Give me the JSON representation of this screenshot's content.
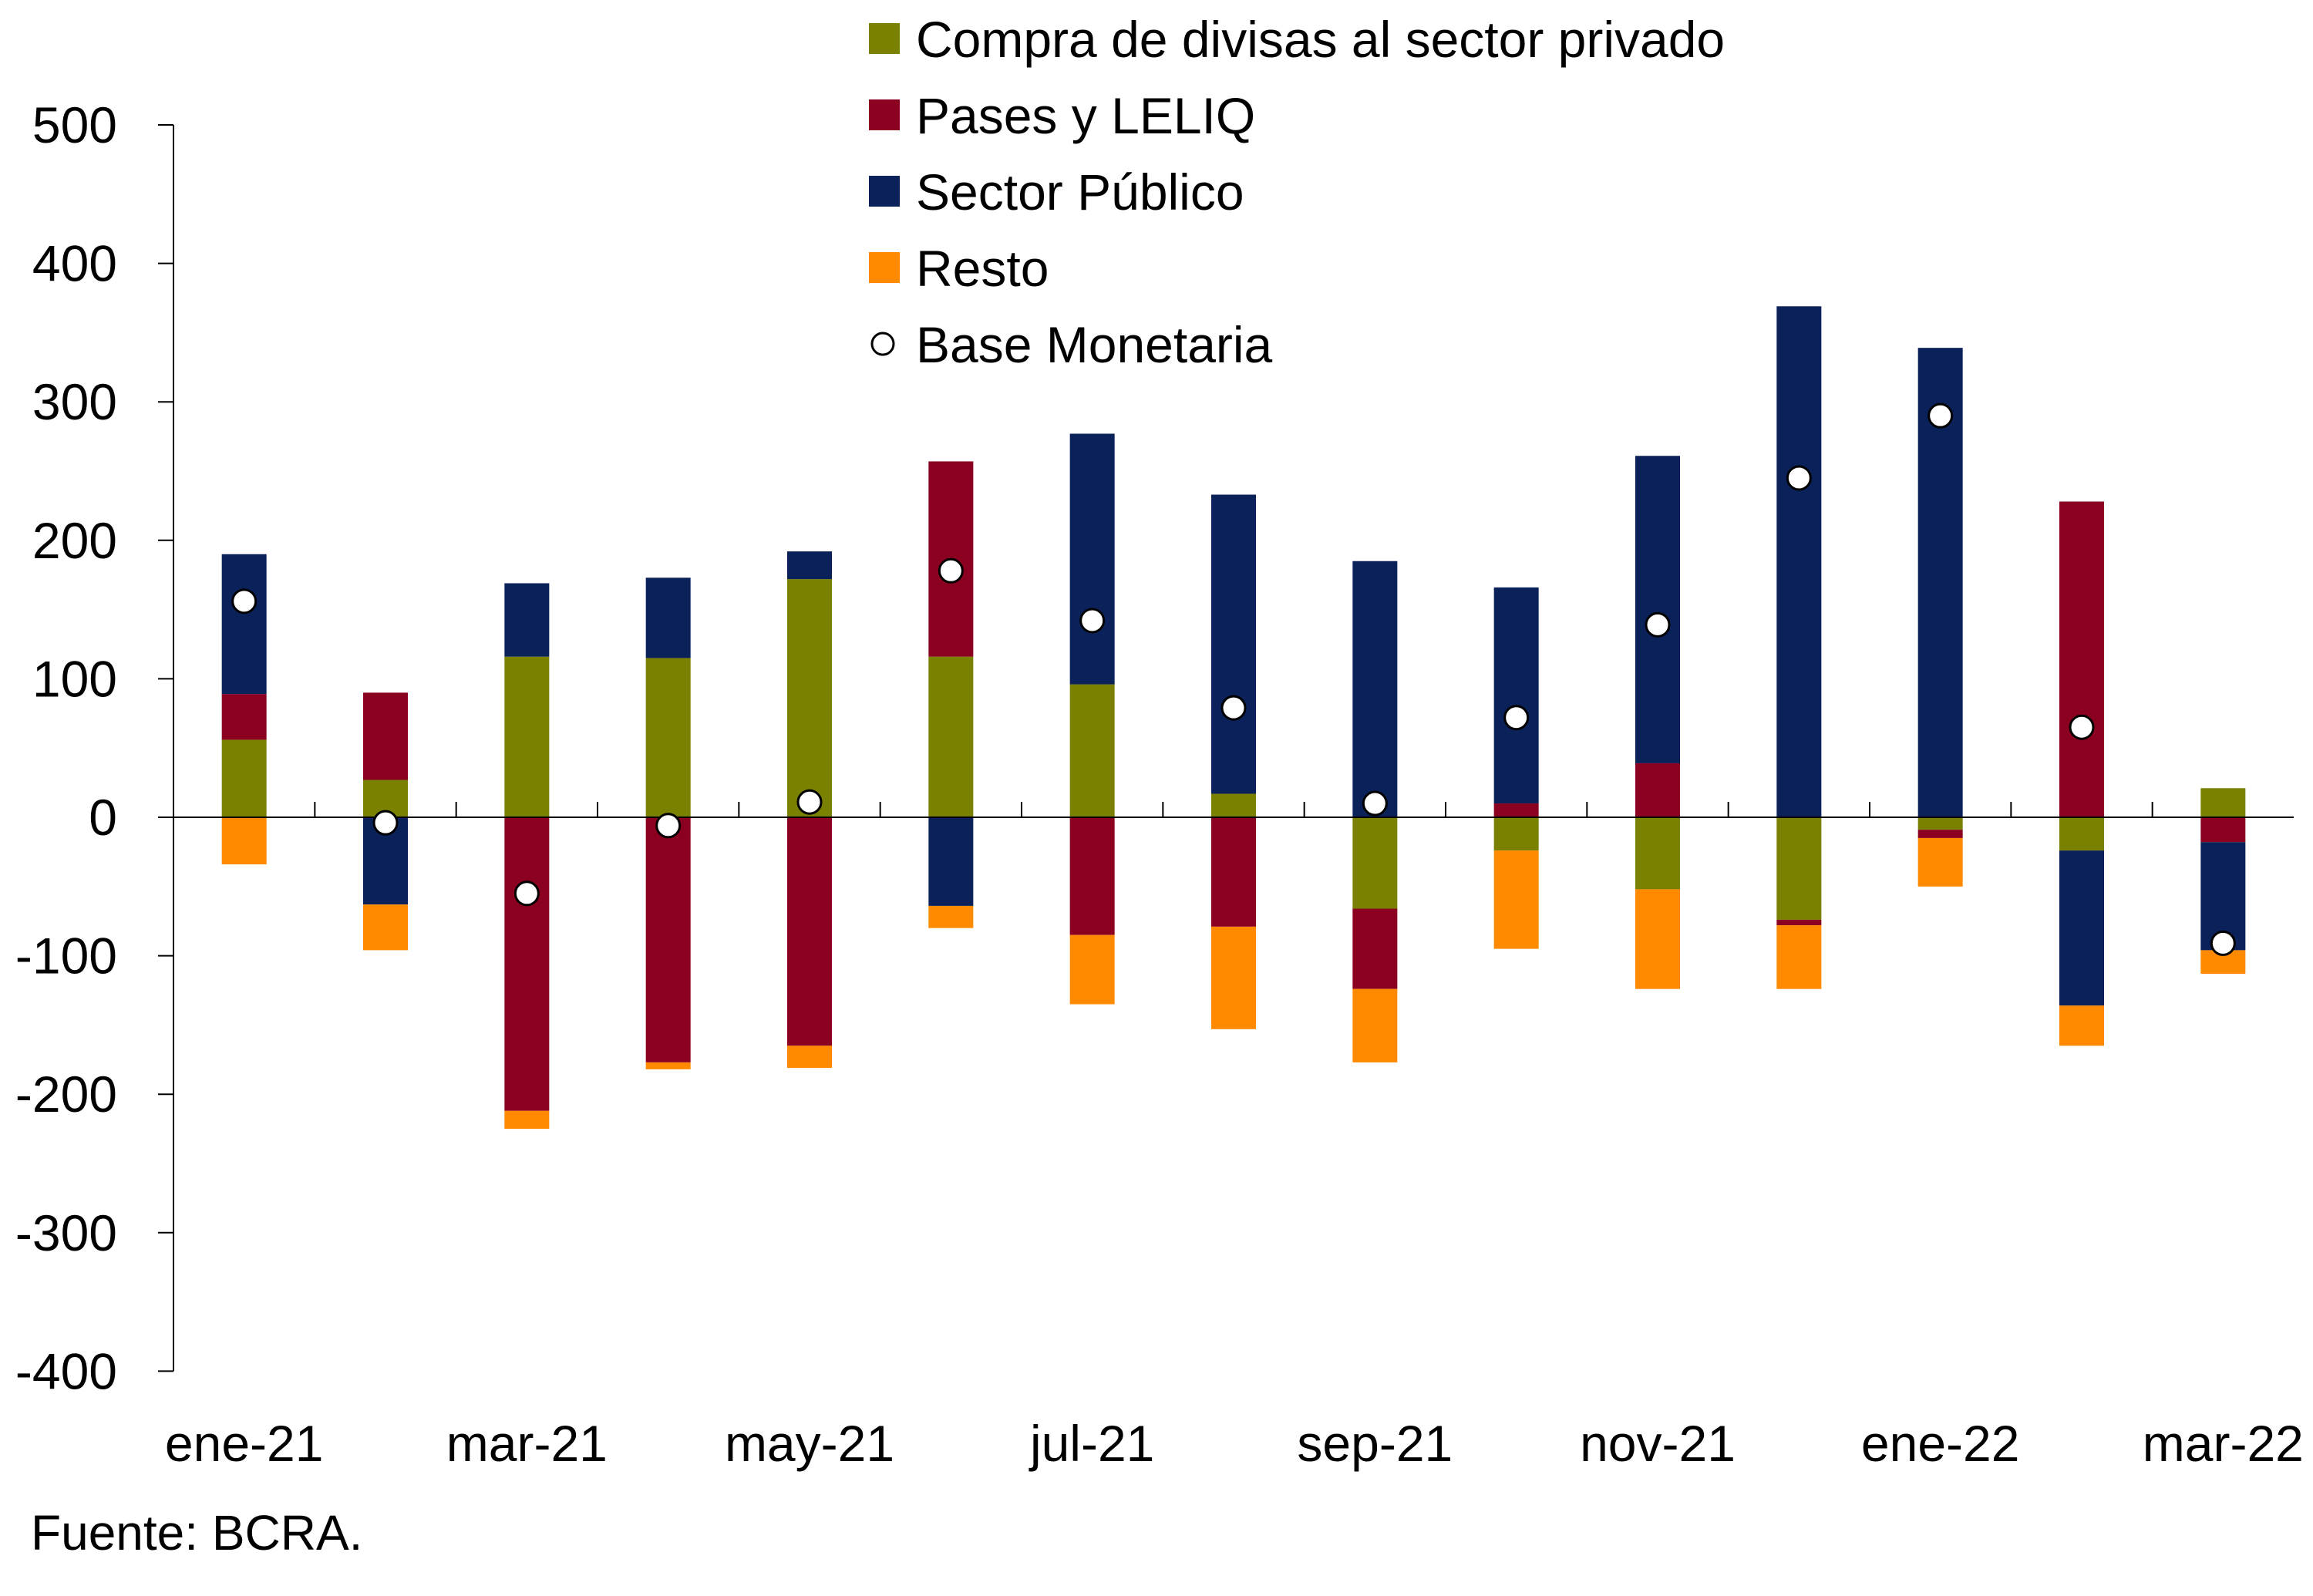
{
  "chart_data": {
    "type": "bar",
    "stacked": true,
    "x_tick_labels": [
      "ene-21",
      "mar-21",
      "may-21",
      "jul-21",
      "sep-21",
      "nov-21",
      "ene-22",
      "mar-22"
    ],
    "ylim": [
      -400,
      500
    ],
    "yticks": [
      500,
      400,
      300,
      200,
      100,
      0,
      -100,
      -200,
      -300,
      -400
    ],
    "grid": false,
    "legend_placement": "top",
    "series": [
      {
        "name": "Compra de divisas al sector privado",
        "color": "#7A8000",
        "values": [
          56,
          27,
          116,
          115,
          172,
          116,
          96,
          17,
          -66,
          -24,
          -52,
          -74,
          -9,
          -24,
          21
        ]
      },
      {
        "name": "Pases y LELIQ",
        "color": "#8B0021",
        "values": [
          33,
          63,
          -212,
          -177,
          -165,
          141,
          -85,
          -79,
          -58,
          10,
          39,
          -4,
          -6,
          228,
          -18
        ]
      },
      {
        "name": "Sector Público",
        "color": "#0A215A",
        "values": [
          101,
          -63,
          53,
          58,
          20,
          -64,
          181,
          216,
          185,
          156,
          222,
          369,
          339,
          -112,
          -78
        ]
      },
      {
        "name": "Resto",
        "color": "#FF8A00",
        "values": [
          -34,
          -33,
          -13,
          -5,
          -16,
          -16,
          -50,
          -74,
          -53,
          -71,
          -72,
          -46,
          -35,
          -29,
          -17
        ]
      }
    ],
    "markers": {
      "name": "Base Monetaria",
      "type": "circle",
      "values": [
        156,
        -4,
        -55,
        -6,
        11,
        178,
        142,
        79,
        10,
        72,
        139,
        245,
        290,
        65,
        -91
      ]
    },
    "source": "Fuente: BCRA."
  }
}
